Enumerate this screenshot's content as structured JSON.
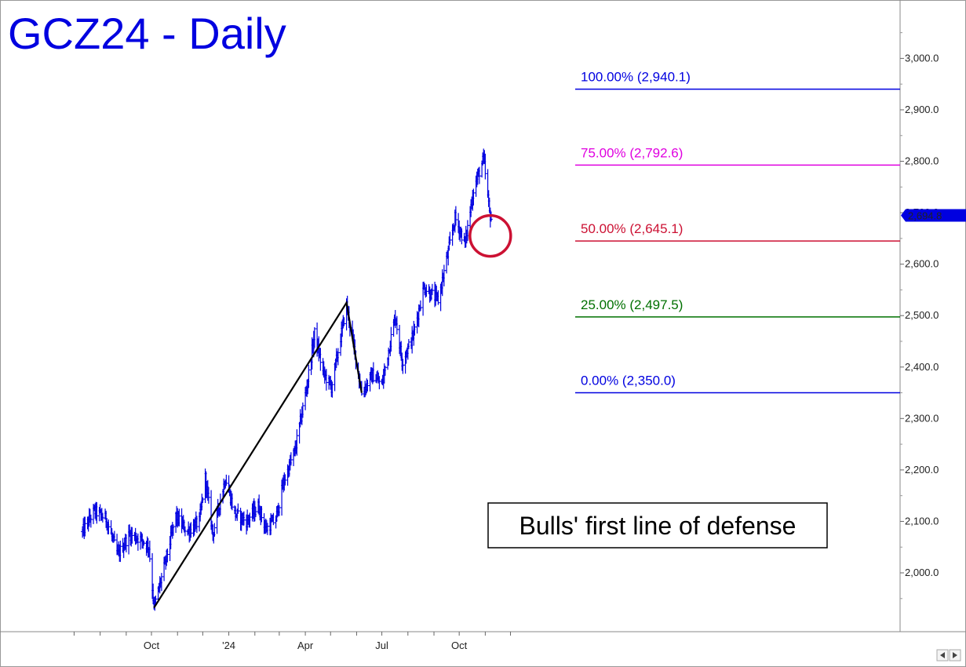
{
  "chart_data": {
    "type": "bar",
    "title": "GCZ24 - Daily",
    "x_tick_labels": [
      "Oct",
      "'24",
      "Apr",
      "Jul",
      "Oct"
    ],
    "y_tick_labels": [
      "2,000.0",
      "2,100.0",
      "2,200.0",
      "2,300.0",
      "2,400.0",
      "2,500.0",
      "2,600.0",
      "2,700.0",
      "2,800.0",
      "2,900.0",
      "3,000.0"
    ],
    "y_ticks": [
      2000,
      2100,
      2200,
      2300,
      2400,
      2500,
      2600,
      2700,
      2800,
      2900,
      3000
    ],
    "ylim": [
      1900,
      3110
    ],
    "last_price": 2694.8,
    "last_price_label": "2,694.8",
    "fib_levels": [
      {
        "label": "100.00% (2,940.1)",
        "value": 2940.1,
        "color": "#0000e0"
      },
      {
        "label": "75.00% (2,792.6)",
        "value": 2792.6,
        "color": "#e000e0"
      },
      {
        "label": "50.00% (2,645.1)",
        "value": 2645.1,
        "color": "#cc1133"
      },
      {
        "label": "25.00% (2,497.5)",
        "value": 2497.5,
        "color": "#007000"
      },
      {
        "label": "0.00% (2,350.0)",
        "value": 2350.0,
        "color": "#0000e0"
      }
    ],
    "swing_points": [
      {
        "date": "2023-10-04",
        "price": 1932
      },
      {
        "date": "2024-05-20",
        "price": 2525
      },
      {
        "date": "2024-06-07",
        "price": 2350
      }
    ],
    "price_anchors": [
      [
        "2023-07-11",
        2080
      ],
      [
        "2023-07-25",
        2120
      ],
      [
        "2023-08-08",
        2105
      ],
      [
        "2023-08-22",
        2035
      ],
      [
        "2023-09-05",
        2075
      ],
      [
        "2023-09-19",
        2065
      ],
      [
        "2023-09-28",
        2050
      ],
      [
        "2023-10-04",
        1932
      ],
      [
        "2023-10-16",
        2010
      ],
      [
        "2023-10-30",
        2110
      ],
      [
        "2023-11-13",
        2080
      ],
      [
        "2023-11-27",
        2100
      ],
      [
        "2023-12-04",
        2185
      ],
      [
        "2023-12-13",
        2075
      ],
      [
        "2023-12-28",
        2185
      ],
      [
        "2024-01-08",
        2115
      ],
      [
        "2024-01-22",
        2100
      ],
      [
        "2024-02-05",
        2130
      ],
      [
        "2024-02-14",
        2085
      ],
      [
        "2024-02-26",
        2105
      ],
      [
        "2024-03-06",
        2175
      ],
      [
        "2024-03-20",
        2240
      ],
      [
        "2024-04-03",
        2365
      ],
      [
        "2024-04-12",
        2465
      ],
      [
        "2024-04-22",
        2390
      ],
      [
        "2024-05-02",
        2360
      ],
      [
        "2024-05-20",
        2520
      ],
      [
        "2024-06-07",
        2350
      ],
      [
        "2024-06-20",
        2385
      ],
      [
        "2024-07-01",
        2365
      ],
      [
        "2024-07-17",
        2500
      ],
      [
        "2024-07-25",
        2410
      ],
      [
        "2024-08-07",
        2460
      ],
      [
        "2024-08-20",
        2555
      ],
      [
        "2024-09-06",
        2530
      ],
      [
        "2024-09-20",
        2640
      ],
      [
        "2024-09-26",
        2690
      ],
      [
        "2024-10-08",
        2640
      ],
      [
        "2024-10-18",
        2745
      ],
      [
        "2024-10-30",
        2805
      ],
      [
        "2024-11-06",
        2700
      ],
      [
        "2024-11-08",
        2690
      ]
    ],
    "annotation": "Bulls' first line of defense",
    "line_color": "#0000e0",
    "circle_color": "#cc1133"
  }
}
